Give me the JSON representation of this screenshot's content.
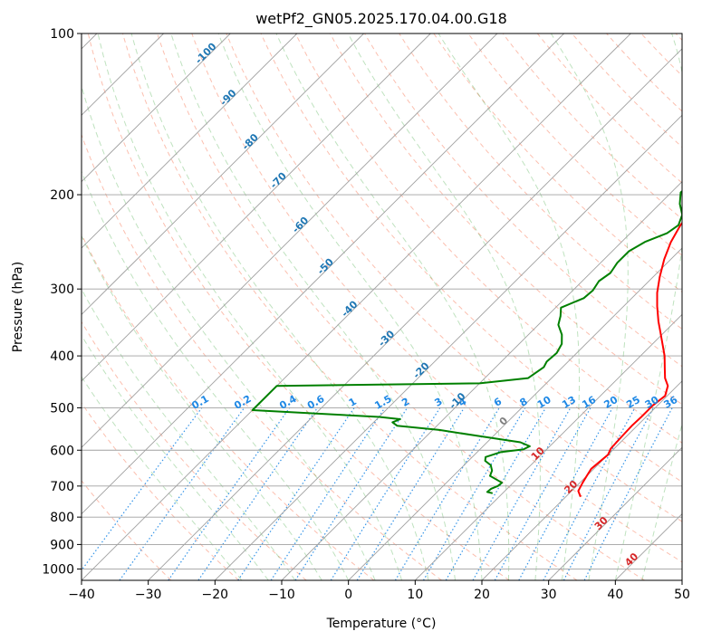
{
  "chart_data": {
    "type": "line",
    "title": "wetPf2_GN05.2025.170.04.00.G18",
    "xlabel": "Temperature (°C)",
    "ylabel": "Pressure (hPa)",
    "xlim": [
      -40,
      50
    ],
    "ylim": [
      1050,
      100
    ],
    "y_scale": "log",
    "x_ticks": [
      "−40",
      "−30",
      "−20",
      "−10",
      "0",
      "10",
      "20",
      "30",
      "40",
      "50"
    ],
    "y_ticks": [
      {
        "p": 100,
        "label": "100"
      },
      {
        "p": 200,
        "label": "200"
      },
      {
        "p": 300,
        "label": "300"
      },
      {
        "p": 400,
        "label": "400"
      },
      {
        "p": 500,
        "label": "500"
      },
      {
        "p": 600,
        "label": "600"
      },
      {
        "p": 700,
        "label": "700"
      },
      {
        "p": 800,
        "label": "800"
      },
      {
        "p": 900,
        "label": "900"
      },
      {
        "p": 1000,
        "label": "1000"
      }
    ],
    "grid": true,
    "colors": {
      "temperature": "#ff0000",
      "dewpoint": "#008000",
      "isotherm": "#a0a0a0",
      "dry_adiabat": "#fa8060",
      "moist_adiabat": "#2ca02c",
      "mixing_ratio": "#1e88e5",
      "isotherm_label": "#1f77b4",
      "adiabat_label": "#d62728"
    },
    "series": [
      {
        "key": "temperature",
        "points": [
          [
            22.2,
            733
          ],
          [
            21.0,
            715
          ],
          [
            20.4,
            690
          ],
          [
            20.0,
            670
          ],
          [
            19.6,
            650
          ],
          [
            19.8,
            630
          ],
          [
            20.0,
            612
          ],
          [
            19.5,
            596
          ],
          [
            19.4,
            580
          ],
          [
            19.3,
            560
          ],
          [
            19.2,
            540
          ],
          [
            19.3,
            520
          ],
          [
            19.3,
            495
          ],
          [
            19.7,
            475
          ],
          [
            18.6,
            455
          ],
          [
            17.0,
            440
          ],
          [
            15.5,
            422
          ],
          [
            13.6,
            400
          ],
          [
            11.5,
            380
          ],
          [
            9.5,
            362
          ],
          [
            7.5,
            345
          ],
          [
            5.0,
            323
          ],
          [
            3.0,
            305
          ],
          [
            1.0,
            285
          ],
          [
            -1.0,
            264
          ],
          [
            -2.6,
            245
          ],
          [
            -3.7,
            228
          ],
          [
            -4.3,
            212
          ],
          [
            -4.5,
            195
          ],
          [
            -4.7,
            180
          ],
          [
            -4.6,
            165
          ],
          [
            -4.2,
            152
          ],
          [
            -3.2,
            140
          ],
          [
            -1.7,
            130
          ],
          [
            0.5,
            123
          ],
          [
            2.0,
            117
          ],
          [
            3.0,
            111
          ],
          [
            3.6,
            105
          ],
          [
            4.4,
            100
          ]
        ]
      },
      {
        "key": "dewpoint",
        "points": [
          [
            8.5,
            722
          ],
          [
            7.5,
            718
          ],
          [
            7.6,
            708
          ],
          [
            8.2,
            700
          ],
          [
            8.3,
            690
          ],
          [
            7.2,
            682
          ],
          [
            5.5,
            670
          ],
          [
            5.0,
            655
          ],
          [
            4.0,
            640
          ],
          [
            2.5,
            628
          ],
          [
            2.0,
            618
          ],
          [
            3.5,
            605
          ],
          [
            6.5,
            598
          ],
          [
            7.0,
            590
          ],
          [
            5.0,
            580
          ],
          [
            -2.0,
            565
          ],
          [
            -9.0,
            550
          ],
          [
            -16.0,
            540
          ],
          [
            -17.2,
            532
          ],
          [
            -16.5,
            525
          ],
          [
            -20.0,
            520
          ],
          [
            -40.0,
            505
          ],
          [
            -40.0,
            455
          ],
          [
            -10.0,
            450
          ],
          [
            -3.5,
            440
          ],
          [
            -2.8,
            420
          ],
          [
            -3.2,
            410
          ],
          [
            -3.0,
            395
          ],
          [
            -3.6,
            380
          ],
          [
            -5.0,
            365
          ],
          [
            -7.0,
            350
          ],
          [
            -8.0,
            337
          ],
          [
            -9.2,
            325
          ],
          [
            -7.2,
            312
          ],
          [
            -7.0,
            302
          ],
          [
            -7.5,
            290
          ],
          [
            -7.0,
            280
          ],
          [
            -7.5,
            268
          ],
          [
            -7.5,
            255
          ],
          [
            -6.5,
            245
          ],
          [
            -4.5,
            236
          ],
          [
            -4.0,
            228
          ],
          [
            -5.0,
            218
          ],
          [
            -7.0,
            208
          ],
          [
            -8.6,
            198
          ],
          [
            -8.3,
            190
          ],
          [
            -7.8,
            180
          ],
          [
            -7.2,
            172
          ],
          [
            -6.7,
            162
          ],
          [
            -6.3,
            152
          ],
          [
            -5.3,
            140
          ],
          [
            -3.5,
            128
          ],
          [
            -1.7,
            118
          ],
          [
            0.2,
            108
          ],
          [
            1.5,
            100
          ]
        ]
      }
    ],
    "isotherm_labels": [
      "-100",
      "-90",
      "-80",
      "-70",
      "-60",
      "-50",
      "-40",
      "-30",
      "-20",
      "-10",
      "0",
      "10",
      "20",
      "30",
      "40"
    ],
    "mixing_ratio_labels": [
      "0.1",
      "0.2",
      "0.4",
      "0.6",
      "1",
      "1.5",
      "2",
      "3",
      "4",
      "6",
      "8",
      "10",
      "13",
      "16",
      "20",
      "25",
      "30",
      "36"
    ]
  }
}
